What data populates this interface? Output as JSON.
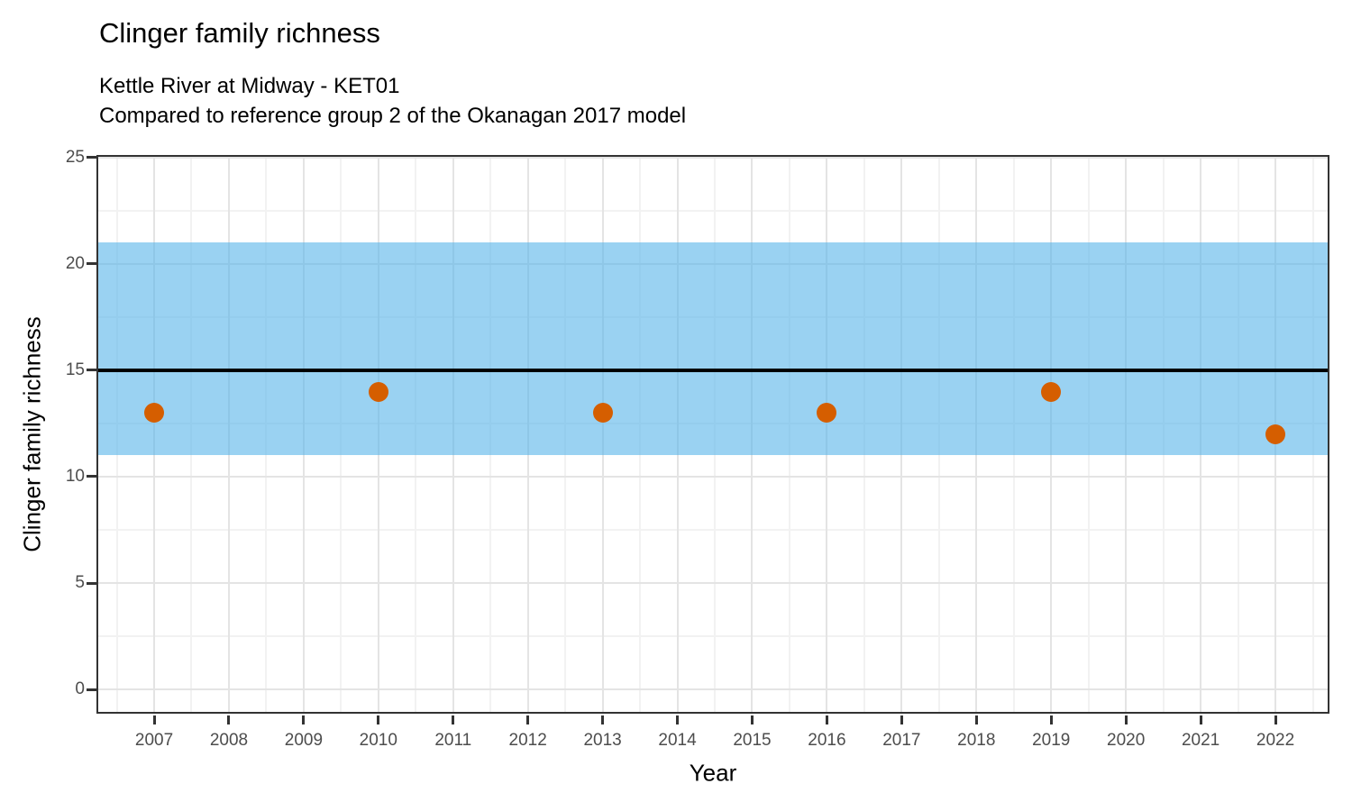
{
  "chart_data": {
    "type": "scatter",
    "title": "Clinger family richness",
    "subtitle_lines": [
      "Kettle River at Midway - KET01",
      "Compared to reference group 2 of the Okanagan 2017 model"
    ],
    "xlabel": "Year",
    "ylabel": "Clinger family richness",
    "x": [
      2007,
      2010,
      2013,
      2016,
      2019,
      2022
    ],
    "y": [
      13,
      14,
      13,
      13,
      14,
      12
    ],
    "point_color": "#D55E00",
    "x_ticks": [
      2007,
      2008,
      2009,
      2010,
      2011,
      2012,
      2013,
      2014,
      2015,
      2016,
      2017,
      2018,
      2019,
      2020,
      2021,
      2022
    ],
    "y_ticks": [
      0,
      5,
      10,
      15,
      20,
      25
    ],
    "xlim": [
      2006.228,
      2022.723
    ],
    "ylim": [
      -1.144,
      25.127
    ],
    "grid": "major and minor, light gray on white panel",
    "legend": "none",
    "reference_band": {
      "ymin": 11,
      "ymax": 21,
      "fill": "#56B4E9",
      "opacity": 0.6
    },
    "reference_line": {
      "y": 15,
      "color": "#000000"
    }
  }
}
